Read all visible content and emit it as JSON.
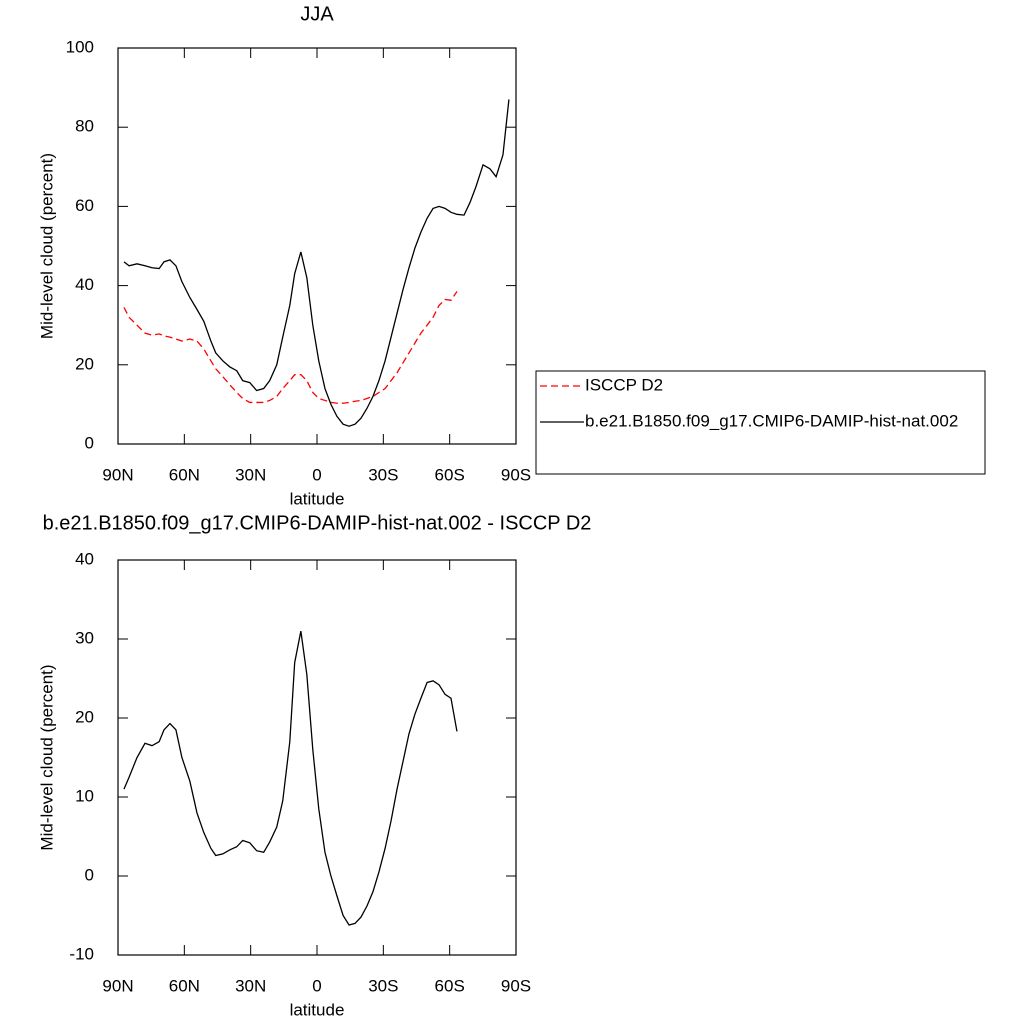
{
  "chart_data": [
    {
      "type": "line",
      "title": "JJA",
      "x_label": "latitude",
      "y_label": "Mid-level cloud (percent)",
      "x": [
        87.3,
        85.0,
        81.4,
        77.8,
        74.6,
        71.4,
        69.2,
        66.5,
        63.8,
        61.1,
        57.5,
        54.3,
        51.2,
        48.0,
        45.8,
        42.6,
        39.5,
        36.3,
        33.6,
        30.4,
        27.3,
        24.1,
        21.4,
        18.2,
        15.5,
        12.3,
        10.1,
        7.3,
        4.6,
        1.9,
        -0.8,
        -3.6,
        -6.3,
        -9.0,
        -11.8,
        -14.5,
        -17.2,
        -19.9,
        -22.6,
        -25.3,
        -28.0,
        -30.8,
        -33.5,
        -36.2,
        -38.9,
        -41.6,
        -44.3,
        -47.0,
        -49.8,
        -52.5,
        -55.2,
        -57.9,
        -60.6,
        -63.3,
        -66.5,
        -69.2,
        -71.9,
        -75.1,
        -78.2,
        -81.0,
        -84.1,
        -86.8
      ],
      "xlim": [
        90,
        -90
      ],
      "xticks": [
        {
          "value": 90,
          "label": "90N"
        },
        {
          "value": 60,
          "label": "60N"
        },
        {
          "value": 30,
          "label": "30N"
        },
        0,
        {
          "value": -30,
          "label": "30S"
        },
        {
          "value": -60,
          "label": "60S"
        },
        {
          "value": -90,
          "label": "90S"
        }
      ],
      "ylim": [
        0,
        100
      ],
      "yticks": [
        0,
        20,
        40,
        60,
        80,
        100
      ],
      "legend": "right",
      "series": [
        {
          "name": "ISCCP D2",
          "color": "#ff0000",
          "dash": "dashed",
          "values": [
            34.5,
            32,
            30,
            28,
            27.5,
            27.8,
            27.3,
            27,
            26.5,
            26,
            26.5,
            26,
            24,
            21,
            19,
            17,
            15,
            13,
            11.5,
            10.5,
            10.5,
            10.5,
            11,
            12,
            14,
            16,
            17.5,
            17.5,
            16,
            13,
            11.5,
            11,
            10.5,
            10.3,
            10.3,
            10.5,
            10.8,
            11,
            11.5,
            12,
            13,
            14,
            16,
            18,
            20.5,
            23,
            25.5,
            28,
            30,
            32,
            35,
            36.5,
            36.3,
            38.5,
            null,
            null,
            null,
            null,
            null,
            null,
            null,
            null
          ]
        },
        {
          "name": "b.e21.B1850.f09_g17.CMIP6-DAMIP-hist-nat.002",
          "color": "#000000",
          "dash": "solid",
          "values": [
            46,
            45,
            45.5,
            45,
            44.5,
            44.3,
            46,
            46.5,
            45,
            41,
            37,
            34,
            31,
            26,
            23,
            21,
            19.5,
            18.5,
            16,
            15.5,
            13.5,
            14,
            16,
            20,
            27,
            35,
            43,
            48.5,
            42,
            30,
            21,
            14,
            10,
            7,
            5,
            4.5,
            5,
            6.5,
            9,
            12,
            16,
            21,
            27,
            33,
            39,
            44.5,
            49.5,
            53.5,
            57,
            59.5,
            60,
            59.5,
            58.5,
            58,
            57.8,
            61,
            65,
            70.5,
            69.5,
            67.5,
            73,
            87
          ]
        }
      ]
    },
    {
      "type": "line",
      "title": "b.e21.B1850.f09_g17.CMIP6-DAMIP-hist-nat.002 - ISCCP D2",
      "x_label": "latitude",
      "y_label": "Mid-level cloud (percent)",
      "x": [
        87.3,
        85.0,
        81.4,
        77.8,
        74.6,
        71.4,
        69.2,
        66.5,
        63.8,
        61.1,
        57.5,
        54.3,
        51.2,
        48.0,
        45.8,
        42.6,
        39.5,
        36.3,
        33.6,
        30.4,
        27.3,
        24.1,
        21.4,
        18.2,
        15.5,
        12.3,
        10.1,
        7.3,
        4.6,
        1.9,
        -0.8,
        -3.6,
        -6.3,
        -9.0,
        -11.8,
        -14.5,
        -17.2,
        -19.9,
        -22.6,
        -25.3,
        -28.0,
        -30.8,
        -33.5,
        -36.2,
        -38.9,
        -41.6,
        -44.3,
        -47.0,
        -49.8,
        -52.5,
        -55.2,
        -57.9,
        -60.6,
        -63.3,
        -66.5,
        -69.2,
        -71.9,
        -75.1,
        -78.2,
        -81.0,
        -84.1,
        -86.8
      ],
      "xlim": [
        90,
        -90
      ],
      "xticks": [
        {
          "value": 90,
          "label": "90N"
        },
        {
          "value": 60,
          "label": "60N"
        },
        {
          "value": 30,
          "label": "30N"
        },
        0,
        {
          "value": -30,
          "label": "30S"
        },
        {
          "value": -60,
          "label": "60S"
        },
        {
          "value": -90,
          "label": "90S"
        }
      ],
      "ylim": [
        -10,
        40
      ],
      "yticks": [
        -10,
        0,
        10,
        20,
        30,
        40
      ],
      "series": [
        {
          "color": "#000000",
          "dash": "solid",
          "values": [
            11,
            12.5,
            15,
            16.8,
            16.5,
            17,
            18.5,
            19.3,
            18.5,
            15,
            12,
            8,
            5.5,
            3.5,
            2.6,
            2.8,
            3.3,
            3.7,
            4.5,
            4.2,
            3.2,
            3,
            4.3,
            6.2,
            9.5,
            17,
            27,
            31,
            25.5,
            16,
            8.5,
            3,
            0,
            -2.5,
            -5,
            -6.2,
            -6,
            -5.2,
            -3.8,
            -2,
            0.5,
            3.5,
            7,
            11,
            14.5,
            18,
            20.5,
            22.5,
            24.5,
            24.7,
            24.2,
            23,
            22.5,
            18.3,
            null,
            null,
            null,
            null,
            null,
            null,
            null,
            null
          ]
        }
      ]
    }
  ]
}
